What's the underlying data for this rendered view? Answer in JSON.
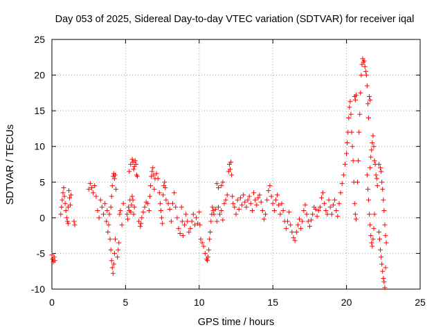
{
  "chart_data": {
    "type": "scatter",
    "title": "Day 053 of 2025, Sidereal Day-to-day VTEC variation (SDTVAR) for receiver iqal",
    "xlabel": "GPS time / hours",
    "ylabel": "SDTVAR / TECUs",
    "xlim": [
      0,
      25
    ],
    "ylim": [
      -10,
      25
    ],
    "xticks": [
      0,
      5,
      10,
      15,
      20,
      25
    ],
    "yticks": [
      -10,
      -5,
      0,
      5,
      10,
      15,
      20,
      25
    ],
    "grid": true,
    "marker": "+",
    "color": "#ff0000",
    "series": [
      {
        "name": "SDTVAR",
        "points": [
          [
            0.0,
            -5.2
          ],
          [
            0.05,
            -5.8
          ],
          [
            0.1,
            -6.2
          ],
          [
            0.15,
            -5.5
          ],
          [
            0.2,
            -6.0
          ],
          [
            0.6,
            0.5
          ],
          [
            0.65,
            1.5
          ],
          [
            0.7,
            2.5
          ],
          [
            0.75,
            3.5
          ],
          [
            0.8,
            4.2
          ],
          [
            0.85,
            3.0
          ],
          [
            0.9,
            2.0
          ],
          [
            0.95,
            1.0
          ],
          [
            1.0,
            0.0
          ],
          [
            1.05,
            -0.5
          ],
          [
            1.1,
            1.5
          ],
          [
            1.15,
            3.8
          ],
          [
            1.2,
            2.8
          ],
          [
            1.25,
            1.8
          ],
          [
            1.3,
            3.2
          ],
          [
            1.1,
            -0.8
          ],
          [
            1.5,
            -0.5
          ],
          [
            1.55,
            -1.0
          ],
          [
            2.5,
            4.0
          ],
          [
            2.6,
            4.8
          ],
          [
            2.7,
            4.2
          ],
          [
            2.8,
            3.5
          ],
          [
            2.9,
            4.5
          ],
          [
            3.0,
            3.0
          ],
          [
            3.1,
            1.0
          ],
          [
            3.2,
            0.0
          ],
          [
            3.3,
            2.5
          ],
          [
            3.4,
            1.5
          ],
          [
            3.5,
            0.5
          ],
          [
            3.6,
            2.0
          ],
          [
            3.7,
            -0.5
          ],
          [
            3.75,
            1.0
          ],
          [
            3.8,
            -2.0
          ],
          [
            3.85,
            -1.0
          ],
          [
            3.9,
            0.5
          ],
          [
            3.95,
            -3.0
          ],
          [
            4.0,
            -4.5
          ],
          [
            4.05,
            -6.0
          ],
          [
            4.1,
            -7.0
          ],
          [
            4.15,
            -7.8
          ],
          [
            4.2,
            -6.5
          ],
          [
            4.25,
            -5.0
          ],
          [
            4.3,
            -3.0
          ],
          [
            4.0,
            1.5
          ],
          [
            4.05,
            3.0
          ],
          [
            4.1,
            4.5
          ],
          [
            4.15,
            5.8
          ],
          [
            4.2,
            6.2
          ],
          [
            4.25,
            5.5
          ],
          [
            4.3,
            6.0
          ],
          [
            4.35,
            4.0
          ],
          [
            4.45,
            -5.5
          ],
          [
            4.5,
            -4.5
          ],
          [
            4.55,
            -3.5
          ],
          [
            4.6,
            0.5
          ],
          [
            4.65,
            1.0
          ],
          [
            4.75,
            -1.0
          ],
          [
            4.85,
            2.0
          ],
          [
            5.1,
            0.5
          ],
          [
            5.15,
            -0.2
          ],
          [
            5.2,
            1.5
          ],
          [
            5.25,
            1.0
          ],
          [
            5.3,
            2.5
          ],
          [
            5.35,
            0.8
          ],
          [
            5.4,
            1.8
          ],
          [
            5.45,
            3.0
          ],
          [
            5.5,
            2.5
          ],
          [
            5.55,
            0.5
          ],
          [
            5.6,
            1.5
          ],
          [
            5.25,
            6.5
          ],
          [
            5.35,
            7.5
          ],
          [
            5.45,
            8.2
          ],
          [
            5.5,
            7.8
          ],
          [
            5.55,
            6.8
          ],
          [
            5.6,
            7.2
          ],
          [
            5.65,
            8.0
          ],
          [
            5.7,
            7.5
          ],
          [
            5.75,
            6.0
          ],
          [
            5.8,
            5.8
          ],
          [
            5.9,
            -0.5
          ],
          [
            6.0,
            -1.2
          ],
          [
            6.05,
            -0.8
          ],
          [
            6.1,
            0.0
          ],
          [
            6.2,
            0.8
          ],
          [
            6.3,
            1.5
          ],
          [
            6.4,
            2.2
          ],
          [
            6.5,
            2.0
          ],
          [
            6.6,
            1.0
          ],
          [
            6.65,
            3.0
          ],
          [
            6.7,
            4.5
          ],
          [
            6.75,
            5.8
          ],
          [
            6.8,
            6.5
          ],
          [
            6.85,
            7.0
          ],
          [
            6.9,
            6.0
          ],
          [
            6.95,
            4.0
          ],
          [
            7.0,
            5.5
          ],
          [
            7.1,
            6.2
          ],
          [
            7.2,
            5.5
          ],
          [
            7.3,
            3.5
          ],
          [
            7.35,
            2.0
          ],
          [
            7.4,
            1.0
          ],
          [
            7.45,
            0.0
          ],
          [
            7.5,
            -0.8
          ],
          [
            7.55,
            3.2
          ],
          [
            7.6,
            4.5
          ],
          [
            7.65,
            5.0
          ],
          [
            7.7,
            4.2
          ],
          [
            7.75,
            2.5
          ],
          [
            7.9,
            2.0
          ],
          [
            8.0,
            1.2
          ],
          [
            8.1,
            -0.5
          ],
          [
            8.2,
            2.0
          ],
          [
            8.3,
            3.5
          ],
          [
            8.4,
            1.5
          ],
          [
            8.5,
            0.0
          ],
          [
            8.6,
            -1.5
          ],
          [
            8.7,
            -2.2
          ],
          [
            8.8,
            1.5
          ],
          [
            8.85,
            -0.5
          ],
          [
            8.9,
            -2.5
          ],
          [
            9.0,
            -1.0
          ],
          [
            9.1,
            0.5
          ],
          [
            9.2,
            -0.5
          ],
          [
            9.3,
            -2.0
          ],
          [
            9.4,
            -1.5
          ],
          [
            9.5,
            -0.5
          ],
          [
            9.6,
            0.5
          ],
          [
            9.7,
            -1.0
          ],
          [
            9.8,
            0.0
          ],
          [
            9.9,
            -0.8
          ],
          [
            10.0,
            0.8
          ],
          [
            10.05,
            -1.0
          ],
          [
            10.1,
            -3.0
          ],
          [
            10.2,
            -3.5
          ],
          [
            10.3,
            -4.0
          ],
          [
            10.4,
            -5.0
          ],
          [
            10.5,
            -5.8
          ],
          [
            10.55,
            -6.0
          ],
          [
            10.6,
            -5.5
          ],
          [
            10.65,
            -4.5
          ],
          [
            10.7,
            -3.0
          ],
          [
            10.75,
            -2.0
          ],
          [
            10.8,
            -0.5
          ],
          [
            10.85,
            0.5
          ],
          [
            10.9,
            1.5
          ],
          [
            10.95,
            1.0
          ],
          [
            11.0,
            0.5
          ],
          [
            11.1,
            1.2
          ],
          [
            11.2,
            -0.5
          ],
          [
            11.3,
            1.5
          ],
          [
            11.4,
            0.5
          ],
          [
            11.5,
            1.0
          ],
          [
            11.6,
            -0.3
          ],
          [
            11.7,
            2.0
          ],
          [
            11.2,
            4.8
          ],
          [
            11.3,
            4.2
          ],
          [
            11.5,
            4.5
          ],
          [
            11.6,
            5.0
          ],
          [
            11.8,
            2.5
          ],
          [
            11.9,
            3.2
          ],
          [
            12.0,
            6.5
          ],
          [
            12.05,
            7.5
          ],
          [
            12.1,
            6.8
          ],
          [
            12.15,
            7.8
          ],
          [
            12.2,
            6.0
          ],
          [
            12.25,
            3.0
          ],
          [
            12.3,
            2.0
          ],
          [
            12.4,
            1.5
          ],
          [
            12.5,
            0.5
          ],
          [
            12.6,
            2.5
          ],
          [
            12.7,
            1.2
          ],
          [
            12.8,
            2.8
          ],
          [
            12.9,
            1.8
          ],
          [
            13.0,
            3.2
          ],
          [
            13.1,
            2.2
          ],
          [
            13.2,
            1.5
          ],
          [
            13.3,
            2.5
          ],
          [
            13.4,
            3.0
          ],
          [
            13.5,
            2.0
          ],
          [
            13.6,
            1.0
          ],
          [
            13.7,
            3.5
          ],
          [
            13.8,
            2.5
          ],
          [
            13.9,
            1.8
          ],
          [
            14.0,
            2.8
          ],
          [
            14.1,
            3.2
          ],
          [
            14.2,
            2.2
          ],
          [
            14.3,
            1.0
          ],
          [
            14.4,
            -0.2
          ],
          [
            14.5,
            0.5
          ],
          [
            14.6,
            2.5
          ],
          [
            14.7,
            3.8
          ],
          [
            14.8,
            4.5
          ],
          [
            14.9,
            3.0
          ],
          [
            15.0,
            2.0
          ],
          [
            15.1,
            1.0
          ],
          [
            15.2,
            2.5
          ],
          [
            15.3,
            3.2
          ],
          [
            15.4,
            1.8
          ],
          [
            15.5,
            0.5
          ],
          [
            15.6,
            2.0
          ],
          [
            15.7,
            1.0
          ],
          [
            15.8,
            -0.5
          ],
          [
            15.9,
            -1.5
          ],
          [
            16.0,
            -0.5
          ],
          [
            16.1,
            0.8
          ],
          [
            16.2,
            -1.0
          ],
          [
            16.3,
            -2.0
          ],
          [
            16.4,
            -2.8
          ],
          [
            16.5,
            -3.2
          ],
          [
            16.6,
            -2.0
          ],
          [
            16.7,
            -1.0
          ],
          [
            16.8,
            -0.2
          ],
          [
            16.9,
            -1.5
          ],
          [
            17.0,
            -0.5
          ],
          [
            17.1,
            1.0
          ],
          [
            17.2,
            1.8
          ],
          [
            17.3,
            0.5
          ],
          [
            17.4,
            -0.5
          ],
          [
            17.5,
            -1.2
          ],
          [
            17.6,
            -0.3
          ],
          [
            17.7,
            0.5
          ],
          [
            17.8,
            1.5
          ],
          [
            17.9,
            1.2
          ],
          [
            18.0,
            0.2
          ],
          [
            18.1,
            1.0
          ],
          [
            18.2,
            1.5
          ],
          [
            18.3,
            2.8
          ],
          [
            18.4,
            3.5
          ],
          [
            18.5,
            2.0
          ],
          [
            18.6,
            1.0
          ],
          [
            18.7,
            0.5
          ],
          [
            18.8,
            2.5
          ],
          [
            18.9,
            1.5
          ],
          [
            19.0,
            0.5
          ],
          [
            19.1,
            1.8
          ],
          [
            19.2,
            2.5
          ],
          [
            19.3,
            1.0
          ],
          [
            19.4,
            0.2
          ],
          [
            19.5,
            2.0
          ],
          [
            19.6,
            3.5
          ],
          [
            19.7,
            4.8
          ],
          [
            19.8,
            6.0
          ],
          [
            19.9,
            7.5
          ],
          [
            20.0,
            9.0
          ],
          [
            20.05,
            10.5
          ],
          [
            20.1,
            12.0
          ],
          [
            20.15,
            14.0
          ],
          [
            20.2,
            15.5
          ],
          [
            20.25,
            16.3
          ],
          [
            20.3,
            14.5
          ],
          [
            20.35,
            12.0
          ],
          [
            20.4,
            10.0
          ],
          [
            20.45,
            8.0
          ],
          [
            20.5,
            5.0
          ],
          [
            20.55,
            2.0
          ],
          [
            20.6,
            0.5
          ],
          [
            20.65,
            -0.2
          ],
          [
            20.55,
            17.0
          ],
          [
            20.6,
            16.5
          ],
          [
            20.65,
            17.2
          ],
          [
            20.75,
            5.0
          ],
          [
            20.8,
            8.0
          ],
          [
            20.85,
            12.0
          ],
          [
            20.9,
            14.5
          ],
          [
            20.95,
            17.5
          ],
          [
            21.0,
            20.0
          ],
          [
            21.05,
            21.5
          ],
          [
            21.1,
            22.3
          ],
          [
            21.15,
            21.8
          ],
          [
            21.2,
            22.0
          ],
          [
            21.25,
            21.2
          ],
          [
            21.3,
            20.5
          ],
          [
            21.35,
            20.0
          ],
          [
            21.4,
            18.5
          ],
          [
            21.45,
            16.0
          ],
          [
            21.5,
            14.0
          ],
          [
            21.55,
            17.0
          ],
          [
            21.6,
            16.5
          ],
          [
            21.4,
            6.0
          ],
          [
            21.45,
            4.0
          ],
          [
            21.5,
            2.5
          ],
          [
            21.55,
            0.5
          ],
          [
            21.6,
            -1.0
          ],
          [
            21.65,
            -2.5
          ],
          [
            21.7,
            -3.5
          ],
          [
            21.75,
            -4.0
          ],
          [
            21.8,
            -3.0
          ],
          [
            21.85,
            -1.5
          ],
          [
            21.9,
            0.5
          ],
          [
            21.6,
            7.0
          ],
          [
            21.65,
            8.5
          ],
          [
            21.7,
            9.5
          ],
          [
            21.75,
            10.5
          ],
          [
            21.8,
            11.5
          ],
          [
            21.85,
            10.0
          ],
          [
            21.9,
            8.0
          ],
          [
            21.95,
            7.5
          ],
          [
            22.0,
            6.0
          ],
          [
            22.05,
            5.5
          ],
          [
            22.1,
            4.5
          ],
          [
            22.2,
            7.5
          ],
          [
            22.3,
            7.0
          ],
          [
            22.35,
            6.5
          ],
          [
            22.4,
            5.0
          ],
          [
            22.45,
            4.0
          ],
          [
            22.5,
            2.5
          ],
          [
            22.55,
            1.0
          ],
          [
            22.6,
            -1.0
          ],
          [
            22.65,
            -2.5
          ],
          [
            22.7,
            -3.5
          ],
          [
            22.2,
            -2.0
          ],
          [
            22.25,
            -3.0
          ],
          [
            22.3,
            -4.5
          ],
          [
            22.35,
            -5.5
          ],
          [
            22.4,
            -6.5
          ],
          [
            22.45,
            -7.5
          ],
          [
            22.5,
            -8.5
          ],
          [
            22.55,
            -9.0
          ],
          [
            22.6,
            -9.8
          ],
          [
            22.65,
            -7.0
          ]
        ]
      }
    ]
  }
}
